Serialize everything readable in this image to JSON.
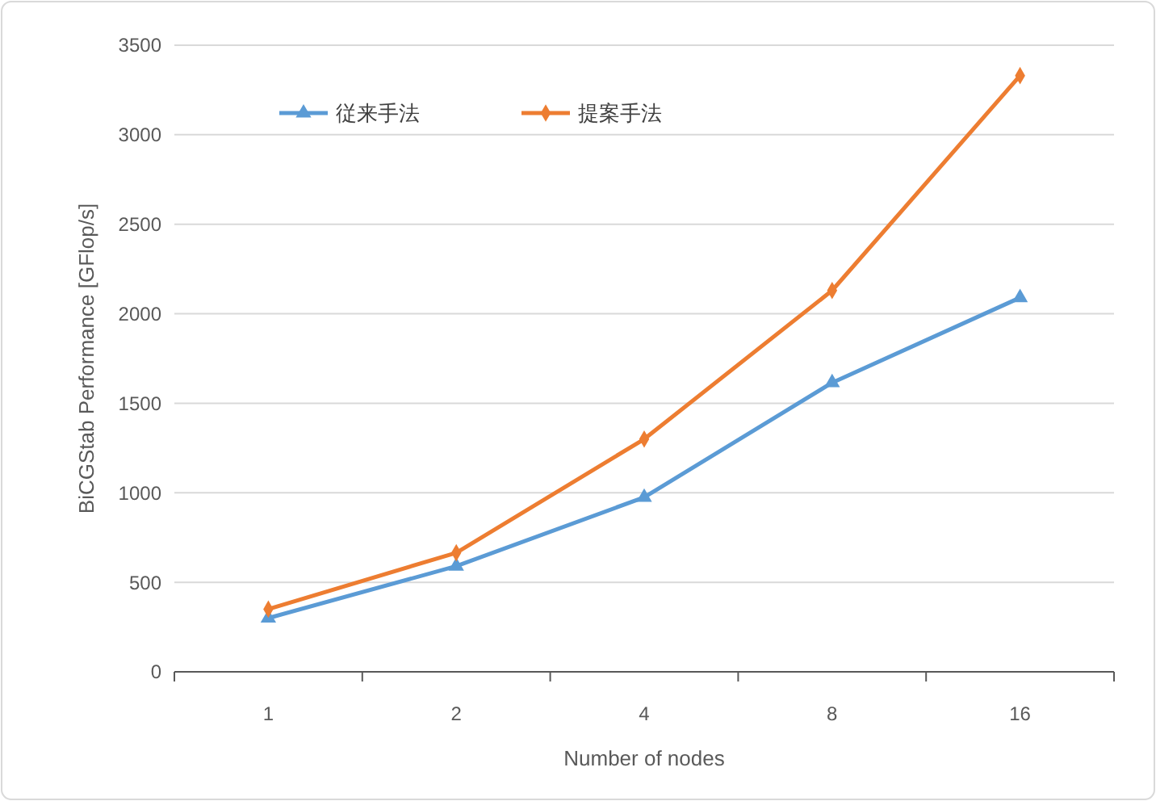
{
  "chart_data": {
    "type": "line",
    "xlabel": "Number of nodes",
    "ylabel": "BiCGStab Performance [GFlop/s]",
    "categories": [
      "1",
      "2",
      "4",
      "8",
      "16"
    ],
    "series": [
      {
        "name": "従来手法",
        "color": "#5b9bd5",
        "marker": "triangle",
        "values": [
          300,
          590,
          975,
          1615,
          2090
        ]
      },
      {
        "name": "提案手法",
        "color": "#ed7d31",
        "marker": "diamond",
        "values": [
          350,
          665,
          1300,
          2130,
          3330
        ]
      }
    ],
    "ylim": [
      0,
      3500
    ],
    "yticks": [
      0,
      500,
      1000,
      1500,
      2000,
      2500,
      3000,
      3500
    ],
    "grid": "y",
    "legend": "top left",
    "line_style": "solid"
  }
}
